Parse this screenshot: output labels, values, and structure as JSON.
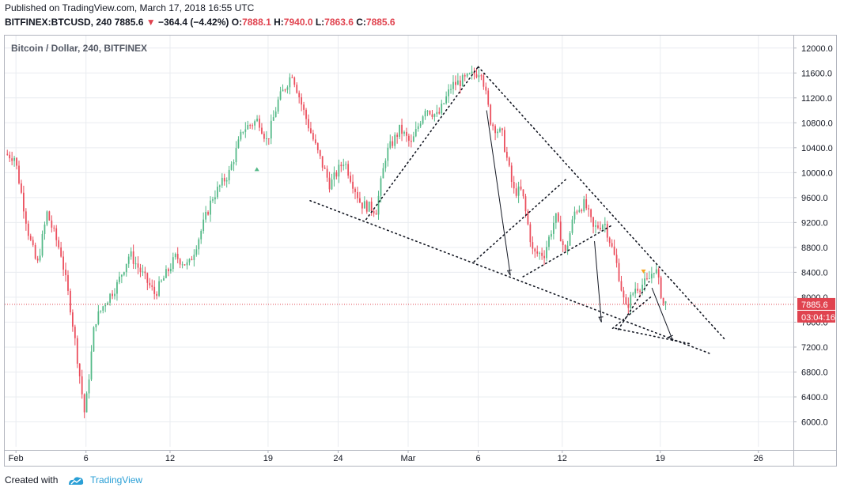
{
  "header": {
    "published": "Published on TradingView.com, March 17, 2018 16:55 UTC",
    "symbol": "BITFINEX:BTCUSD, 240",
    "last": "7885.6",
    "change": "−364.4 (−4.42%)",
    "o_label": "O:",
    "o_val": "7888.1",
    "h_label": "H:",
    "h_val": "7940.0",
    "l_label": "L:",
    "l_val": "7863.6",
    "c_label": "C:",
    "c_val": "7885.6"
  },
  "footer": {
    "created_with": "Created with",
    "brand": "TradingView"
  },
  "colors": {
    "up": "#53b987",
    "down": "#eb4d5c",
    "price_tag": "#e0434f",
    "grid": "#e9ecf0",
    "annotation": "#131722"
  },
  "chart_data": {
    "type": "candlestick",
    "title": "Bitcoin / Dollar, 240, BITFINEX",
    "ylim": [
      5600,
      12200
    ],
    "y_ticks": [
      "12000.0",
      "11600.0",
      "11200.0",
      "10800.0",
      "10400.0",
      "10000.0",
      "9600.0",
      "9200.0",
      "8800.0",
      "8400.0",
      "8000.0",
      "7600.0",
      "7200.0",
      "6800.0",
      "6400.0",
      "6000.0"
    ],
    "y_tick_values": [
      12000,
      11600,
      11200,
      10800,
      10400,
      10000,
      9600,
      9200,
      8800,
      8400,
      8000,
      7600,
      7200,
      6800,
      6400,
      6000
    ],
    "x_ticks": [
      "Feb",
      "6",
      "12",
      "19",
      "24",
      "Mar",
      "6",
      "12",
      "19",
      "26"
    ],
    "x_tick_days": [
      1,
      6,
      12,
      19,
      24,
      29,
      34,
      40,
      47,
      54
    ],
    "x_range_days": [
      0.2,
      56.5
    ],
    "last_price": {
      "label": "7885.6",
      "value": 7885.6,
      "countdown": "03:04:16"
    },
    "anchors": [
      {
        "day": 0.3,
        "price": 10300
      },
      {
        "day": 1.0,
        "price": 10250
      },
      {
        "day": 2.0,
        "price": 9000
      },
      {
        "day": 2.6,
        "price": 8500
      },
      {
        "day": 3.3,
        "price": 9350
      },
      {
        "day": 4.3,
        "price": 8700
      },
      {
        "day": 5.0,
        "price": 7800
      },
      {
        "day": 5.6,
        "price": 6800
      },
      {
        "day": 6.0,
        "price": 6100
      },
      {
        "day": 6.7,
        "price": 7600
      },
      {
        "day": 7.4,
        "price": 7900
      },
      {
        "day": 8.3,
        "price": 8200
      },
      {
        "day": 9.2,
        "price": 8700
      },
      {
        "day": 10.3,
        "price": 8300
      },
      {
        "day": 11.0,
        "price": 8050
      },
      {
        "day": 12.5,
        "price": 8650
      },
      {
        "day": 13.4,
        "price": 8500
      },
      {
        "day": 14.2,
        "price": 9000
      },
      {
        "day": 15.1,
        "price": 9600
      },
      {
        "day": 16.3,
        "price": 10000
      },
      {
        "day": 17.3,
        "price": 10700
      },
      {
        "day": 18.4,
        "price": 10850
      },
      {
        "day": 19.0,
        "price": 10500
      },
      {
        "day": 19.8,
        "price": 11150
      },
      {
        "day": 20.8,
        "price": 11600
      },
      {
        "day": 21.6,
        "price": 11000
      },
      {
        "day": 22.5,
        "price": 10400
      },
      {
        "day": 23.5,
        "price": 9800
      },
      {
        "day": 24.5,
        "price": 10200
      },
      {
        "day": 25.7,
        "price": 9500
      },
      {
        "day": 26.8,
        "price": 9400
      },
      {
        "day": 27.5,
        "price": 10300
      },
      {
        "day": 28.5,
        "price": 10700
      },
      {
        "day": 29.3,
        "price": 10450
      },
      {
        "day": 30.3,
        "price": 11050
      },
      {
        "day": 31.2,
        "price": 10900
      },
      {
        "day": 32.2,
        "price": 11400
      },
      {
        "day": 33.2,
        "price": 11500
      },
      {
        "day": 34.3,
        "price": 11650
      },
      {
        "day": 35.0,
        "price": 10800
      },
      {
        "day": 35.8,
        "price": 10600
      },
      {
        "day": 36.6,
        "price": 9700
      },
      {
        "day": 37.2,
        "price": 9700
      },
      {
        "day": 38.0,
        "price": 8700
      },
      {
        "day": 38.8,
        "price": 8700
      },
      {
        "day": 39.6,
        "price": 9300
      },
      {
        "day": 40.3,
        "price": 8700
      },
      {
        "day": 41.0,
        "price": 9400
      },
      {
        "day": 41.7,
        "price": 9500
      },
      {
        "day": 42.3,
        "price": 9100
      },
      {
        "day": 43.1,
        "price": 9200
      },
      {
        "day": 44.0,
        "price": 8500
      },
      {
        "day": 44.6,
        "price": 7800
      },
      {
        "day": 45.3,
        "price": 8150
      },
      {
        "day": 46.2,
        "price": 8250
      },
      {
        "day": 46.7,
        "price": 8500
      },
      {
        "day": 47.3,
        "price": 7900
      }
    ],
    "drawings": {
      "lines": [
        {
          "from": {
            "day": 22.0,
            "price": 9550
          },
          "to": {
            "day": 50.5,
            "price": 7100
          }
        },
        {
          "from": {
            "day": 26.0,
            "price": 9250
          },
          "to": {
            "day": 34.0,
            "price": 11700
          }
        },
        {
          "from": {
            "day": 34.0,
            "price": 11700
          },
          "to": {
            "day": 51.7,
            "price": 7300
          }
        },
        {
          "from": {
            "day": 33.7,
            "price": 8570
          },
          "to": {
            "day": 40.4,
            "price": 9920
          }
        },
        {
          "from": {
            "day": 37.2,
            "price": 8330
          },
          "to": {
            "day": 43.5,
            "price": 9150
          }
        },
        {
          "from": {
            "day": 43.8,
            "price": 7500
          },
          "to": {
            "day": 49.2,
            "price": 7250
          }
        },
        {
          "from": {
            "day": 44.0,
            "price": 7480
          },
          "to": {
            "day": 46.2,
            "price": 8250
          }
        },
        {
          "from": {
            "day": 43.6,
            "price": 7500
          },
          "to": {
            "day": 46.3,
            "price": 8000
          }
        }
      ],
      "arrows": [
        {
          "from": {
            "day": 34.6,
            "price": 11000
          },
          "to": {
            "day": 36.3,
            "price": 8350
          }
        },
        {
          "from": {
            "day": 42.3,
            "price": 8900
          },
          "to": {
            "day": 42.8,
            "price": 7600
          }
        },
        {
          "from": {
            "day": 46.4,
            "price": 8150
          },
          "to": {
            "day": 47.9,
            "price": 7300
          }
        }
      ],
      "markers": [
        {
          "day": 18.2,
          "price": 10050,
          "shape": "up-triangle",
          "color": "#53b987"
        },
        {
          "day": 45.8,
          "price": 8420,
          "shape": "down-triangle",
          "color": "#f5a623"
        }
      ]
    }
  }
}
